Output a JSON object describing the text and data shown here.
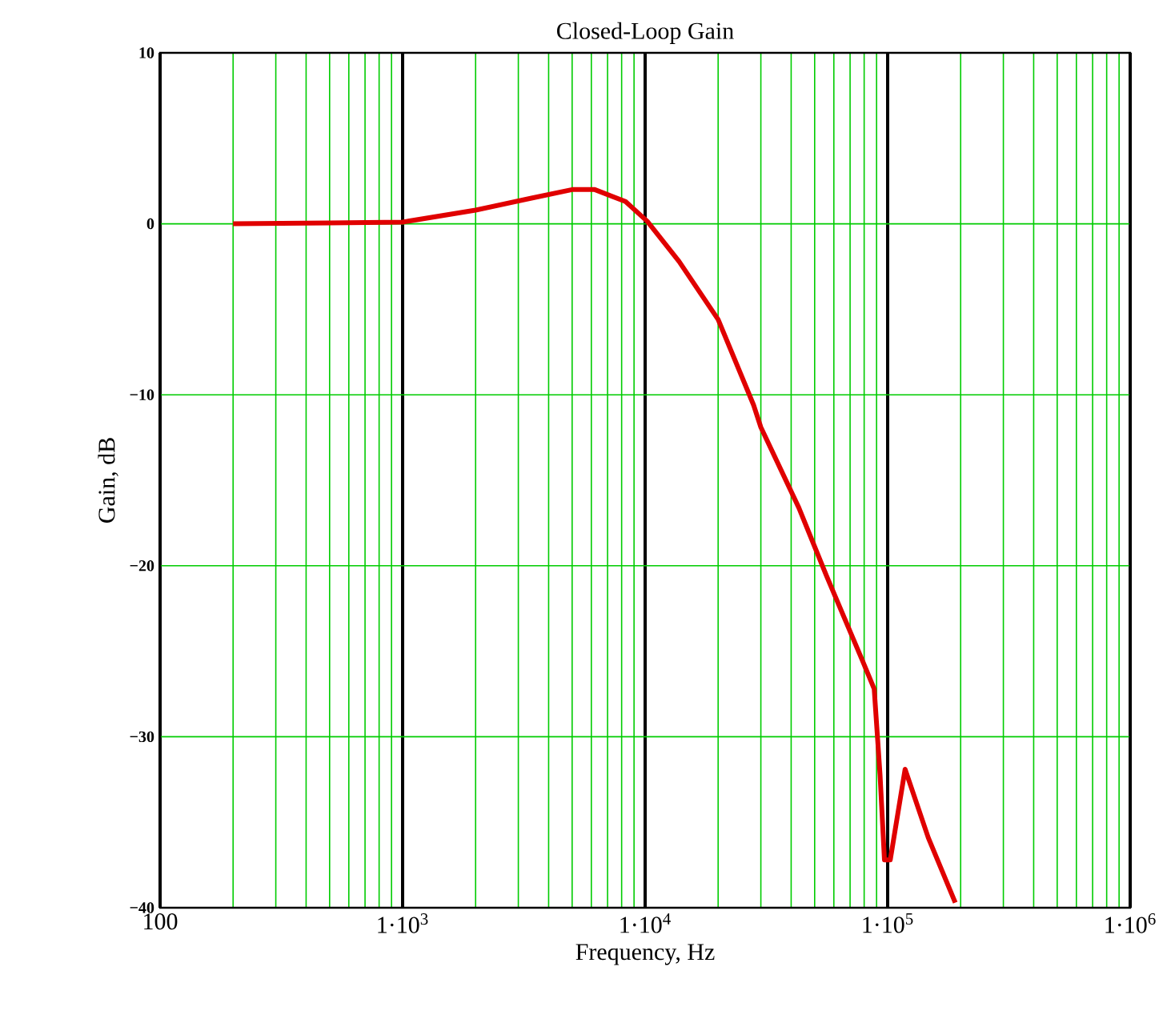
{
  "chart_data": {
    "type": "line",
    "title": "Closed-Loop Gain",
    "xlabel": "Frequency, Hz",
    "ylabel": "Gain, dB",
    "log": "x",
    "grid": true,
    "xlim": [
      100,
      1000000
    ],
    "ylim": [
      -40,
      10
    ],
    "xticks": [
      100,
      {
        "value": 1000,
        "label": "1·10$^{3}$"
      },
      {
        "value": 10000,
        "label": "1·10$^{4}$"
      },
      {
        "value": 100000,
        "label": "1·10$^{5}$"
      },
      {
        "value": 1000000,
        "label": "1·10$^{6}$"
      }
    ],
    "yticks": [
      {
        "value": 10,
        "label": "10"
      },
      {
        "value": 0,
        "label": "0"
      },
      {
        "value": -10,
        "label": "−10"
      },
      {
        "value": -20,
        "label": "−20"
      },
      {
        "value": -30,
        "label": "−30"
      },
      {
        "value": -40,
        "label": "−40"
      }
    ],
    "x": [
      200,
      500,
      1000,
      2000,
      3400,
      5000,
      6200,
      8300,
      10200,
      13800,
      20000,
      28000,
      30000,
      43000,
      56000,
      79000,
      88000,
      93000,
      97000,
      102500,
      118000,
      147000,
      190000
    ],
    "series": [
      {
        "color": "#e00000",
        "values": [
          0,
          0.05,
          0.1,
          0.8,
          1.5,
          2.0,
          2.0,
          1.3,
          0.15,
          -2.2,
          -5.6,
          -10.6,
          -11.9,
          -16.6,
          -20.6,
          -25.6,
          -27.2,
          -32.2,
          -37.2,
          -37.2,
          -31.9,
          -35.9,
          -39.7
        ]
      }
    ]
  }
}
